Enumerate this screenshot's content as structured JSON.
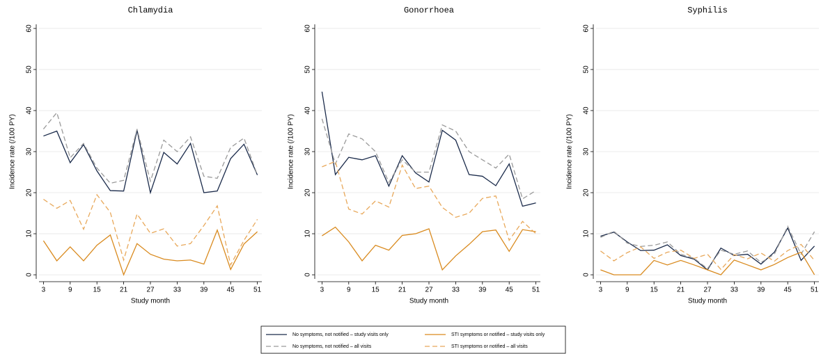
{
  "chart_data": [
    {
      "type": "line",
      "title": "Chlamydia",
      "x_label": "Study month",
      "y_label": "Incidence rate (/100 PY)",
      "x": [
        3,
        6,
        9,
        12,
        15,
        18,
        21,
        24,
        27,
        30,
        33,
        36,
        39,
        42,
        45,
        48,
        51
      ],
      "xlim": [
        2,
        52
      ],
      "xticks": [
        3,
        9,
        15,
        21,
        27,
        33,
        39,
        45,
        51
      ],
      "ylim": [
        -1,
        61
      ],
      "yticks": [
        0,
        10,
        20,
        30,
        40,
        50,
        60
      ],
      "grid": true,
      "series": [
        {
          "name": "No symptoms, not notified – study visits only",
          "color": "#1a2a4a",
          "dash": false,
          "values": [
            33.8,
            35,
            27.3,
            31.7,
            25.3,
            20.5,
            20.4,
            35.2,
            20,
            29.8,
            27,
            32,
            20,
            20.4,
            28.3,
            31.8,
            24.3
          ]
        },
        {
          "name": "No symptoms, not notified – all visits",
          "color": "#9a9a9a",
          "dash": true,
          "values": [
            35.5,
            39.5,
            28.5,
            32,
            26,
            22.3,
            23,
            35.5,
            22.8,
            32.8,
            30,
            33.6,
            24,
            23.5,
            31,
            33.3,
            24.3
          ]
        },
        {
          "name": "STI symptoms or notified – study visits only",
          "color": "#d98a1e",
          "dash": false,
          "values": [
            8.3,
            3.4,
            6.8,
            3.4,
            7.2,
            9.7,
            0,
            7.6,
            5,
            3.8,
            3.4,
            3.6,
            2.6,
            10.9,
            1.3,
            7.5,
            10.5
          ]
        },
        {
          "name": "STI symptoms or notified – all visits",
          "color": "#e8a85a",
          "dash": true,
          "values": [
            18.4,
            16.2,
            18.1,
            11.1,
            19.5,
            15.2,
            3.6,
            14.8,
            10.1,
            11.2,
            7,
            7.6,
            12,
            16.8,
            2.4,
            8.4,
            13.5
          ]
        }
      ]
    },
    {
      "type": "line",
      "title": "Gonorrhoea",
      "x_label": "Study month",
      "y_label": "Incidence rate (/100 PY)",
      "x": [
        3,
        6,
        9,
        12,
        15,
        18,
        21,
        24,
        27,
        30,
        33,
        36,
        39,
        42,
        45,
        48,
        51
      ],
      "xlim": [
        2,
        52
      ],
      "xticks": [
        3,
        9,
        15,
        21,
        27,
        33,
        39,
        45,
        51
      ],
      "ylim": [
        -1,
        61
      ],
      "yticks": [
        0,
        10,
        20,
        30,
        40,
        50,
        60
      ],
      "grid": true,
      "series": [
        {
          "color": "#1a2a4a",
          "dash": false,
          "values": [
            44.6,
            24.4,
            28.6,
            28,
            29,
            21.6,
            29,
            24.8,
            22.6,
            35.2,
            32.8,
            24.4,
            24,
            21.7,
            27,
            16.7,
            17.5
          ]
        },
        {
          "color": "#9a9a9a",
          "dash": true,
          "values": [
            38,
            27,
            34.3,
            33.1,
            30,
            22.5,
            28,
            25,
            25,
            36.5,
            35,
            30,
            28,
            26,
            29.4,
            18.5,
            20.5
          ]
        },
        {
          "color": "#d98a1e",
          "dash": false,
          "values": [
            9.5,
            11.6,
            8,
            3.4,
            7.2,
            6,
            9.6,
            10,
            11.2,
            1.2,
            4.6,
            7.4,
            10.5,
            10.9,
            5.7,
            11,
            10.5
          ]
        },
        {
          "color": "#e8a85a",
          "dash": true,
          "values": [
            26.3,
            27.6,
            16,
            14.8,
            18,
            16.5,
            26.7,
            21,
            21.6,
            16.4,
            14,
            15,
            18.6,
            19.2,
            8.4,
            13,
            10
          ]
        }
      ]
    },
    {
      "type": "line",
      "title": "Syphilis",
      "x_label": "Study month",
      "y_label": "Incidence rate (/100 PY)",
      "x": [
        3,
        6,
        9,
        12,
        15,
        18,
        21,
        24,
        27,
        30,
        33,
        36,
        39,
        42,
        45,
        48,
        51
      ],
      "xlim": [
        2,
        52
      ],
      "xticks": [
        3,
        9,
        15,
        21,
        27,
        33,
        39,
        45,
        51
      ],
      "ylim": [
        -1,
        61
      ],
      "yticks": [
        0,
        10,
        20,
        30,
        40,
        50,
        60
      ],
      "grid": true,
      "series": [
        {
          "color": "#1a2a4a",
          "dash": false,
          "values": [
            9.4,
            10.4,
            8,
            5.9,
            6,
            7.3,
            4.7,
            3.8,
            1.2,
            6.5,
            4.7,
            5,
            2.6,
            5.5,
            11.4,
            3.5,
            7
          ]
        },
        {
          "color": "#9a9a9a",
          "dash": true,
          "values": [
            9.1,
            10.6,
            7.7,
            6.9,
            7.2,
            8,
            5,
            4,
            1.5,
            6,
            5,
            5.8,
            3,
            5,
            11.8,
            5,
            10.5
          ]
        },
        {
          "color": "#d98a1e",
          "dash": false,
          "values": [
            1.2,
            0,
            0,
            0,
            3.5,
            2.4,
            3.5,
            2.4,
            1.2,
            0,
            3.6,
            2.4,
            1.2,
            2.5,
            4.2,
            5.5,
            0
          ]
        },
        {
          "color": "#e8a85a",
          "dash": true,
          "values": [
            5.8,
            3.4,
            5.4,
            6.8,
            4,
            5.5,
            6,
            4,
            5,
            1.3,
            4.9,
            3.9,
            5.3,
            3.3,
            5.9,
            7.4,
            3.5
          ]
        }
      ]
    }
  ]
}
